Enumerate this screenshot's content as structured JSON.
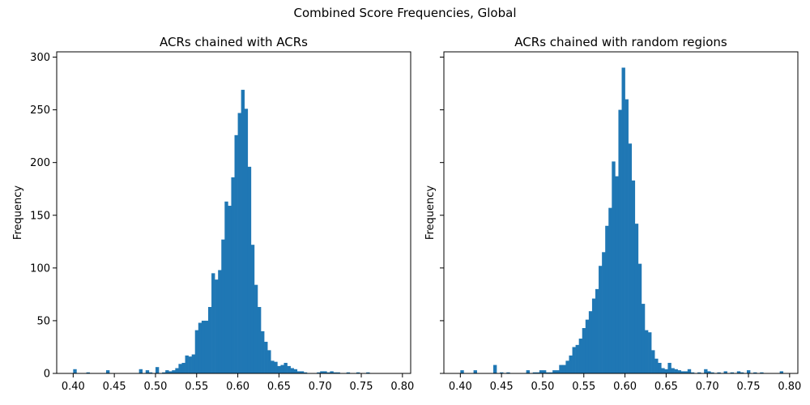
{
  "suptitle": "Combined Score Frequencies, Global",
  "chart_data": [
    {
      "type": "bar",
      "subtype": "histogram",
      "title": "ACRs chained with ACRs",
      "xlabel": "",
      "ylabel": "Frequency",
      "xlim": [
        0.38,
        0.81
      ],
      "ylim": [
        0,
        305
      ],
      "xticks": [
        0.4,
        0.45,
        0.5,
        0.55,
        0.6,
        0.65,
        0.7,
        0.75,
        0.8
      ],
      "xtick_labels": [
        "0.40",
        "0.45",
        "0.50",
        "0.55",
        "0.60",
        "0.65",
        "0.70",
        "0.75",
        "0.80"
      ],
      "yticks": [
        0,
        50,
        100,
        150,
        200,
        250,
        300
      ],
      "ytick_labels": [
        "0",
        "50",
        "100",
        "150",
        "200",
        "250",
        "300"
      ],
      "color": "#1f77b4",
      "bin_width": 0.004,
      "bins": [
        [
          0.4,
          4
        ],
        [
          0.416,
          1
        ],
        [
          0.44,
          3
        ],
        [
          0.48,
          4
        ],
        [
          0.488,
          3
        ],
        [
          0.492,
          1
        ],
        [
          0.5,
          6
        ],
        [
          0.508,
          1
        ],
        [
          0.512,
          3
        ],
        [
          0.516,
          2
        ],
        [
          0.52,
          3
        ],
        [
          0.524,
          5
        ],
        [
          0.528,
          9
        ],
        [
          0.532,
          10
        ],
        [
          0.536,
          17
        ],
        [
          0.54,
          16
        ],
        [
          0.544,
          18
        ],
        [
          0.548,
          41
        ],
        [
          0.552,
          48
        ],
        [
          0.556,
          50
        ],
        [
          0.56,
          50
        ],
        [
          0.564,
          63
        ],
        [
          0.568,
          95
        ],
        [
          0.572,
          89
        ],
        [
          0.576,
          98
        ],
        [
          0.58,
          127
        ],
        [
          0.584,
          163
        ],
        [
          0.588,
          159
        ],
        [
          0.592,
          186
        ],
        [
          0.596,
          226
        ],
        [
          0.6,
          247
        ],
        [
          0.604,
          269
        ],
        [
          0.608,
          251
        ],
        [
          0.612,
          196
        ],
        [
          0.616,
          122
        ],
        [
          0.62,
          84
        ],
        [
          0.624,
          63
        ],
        [
          0.628,
          40
        ],
        [
          0.632,
          30
        ],
        [
          0.636,
          22
        ],
        [
          0.64,
          12
        ],
        [
          0.644,
          11
        ],
        [
          0.648,
          7
        ],
        [
          0.652,
          8
        ],
        [
          0.656,
          10
        ],
        [
          0.66,
          7
        ],
        [
          0.664,
          5
        ],
        [
          0.668,
          4
        ],
        [
          0.672,
          2
        ],
        [
          0.676,
          2
        ],
        [
          0.68,
          1
        ],
        [
          0.696,
          1
        ],
        [
          0.7,
          2
        ],
        [
          0.704,
          2
        ],
        [
          0.708,
          1
        ],
        [
          0.712,
          2
        ],
        [
          0.716,
          1
        ],
        [
          0.72,
          1
        ],
        [
          0.732,
          1
        ],
        [
          0.744,
          1
        ],
        [
          0.756,
          1
        ]
      ]
    },
    {
      "type": "bar",
      "subtype": "histogram",
      "title": "ACRs chained with random regions",
      "xlabel": "",
      "ylabel": "Frequency",
      "xlim": [
        0.38,
        0.81
      ],
      "ylim": [
        0,
        305
      ],
      "xticks": [
        0.4,
        0.45,
        0.5,
        0.55,
        0.6,
        0.65,
        0.7,
        0.75,
        0.8
      ],
      "xtick_labels": [
        "0.40",
        "0.45",
        "0.50",
        "0.55",
        "0.60",
        "0.65",
        "0.70",
        "0.75",
        "0.80"
      ],
      "yticks": [
        0,
        50,
        100,
        150,
        200,
        250,
        300
      ],
      "ytick_labels": [],
      "color": "#1f77b4",
      "bin_width": 0.004,
      "bins": [
        [
          0.4,
          3
        ],
        [
          0.416,
          3
        ],
        [
          0.44,
          8
        ],
        [
          0.448,
          1
        ],
        [
          0.456,
          1
        ],
        [
          0.48,
          3
        ],
        [
          0.488,
          1
        ],
        [
          0.492,
          1
        ],
        [
          0.496,
          3
        ],
        [
          0.5,
          3
        ],
        [
          0.504,
          1
        ],
        [
          0.508,
          1
        ],
        [
          0.512,
          3
        ],
        [
          0.516,
          3
        ],
        [
          0.52,
          8
        ],
        [
          0.524,
          8
        ],
        [
          0.528,
          12
        ],
        [
          0.532,
          17
        ],
        [
          0.536,
          25
        ],
        [
          0.54,
          27
        ],
        [
          0.544,
          33
        ],
        [
          0.548,
          43
        ],
        [
          0.552,
          51
        ],
        [
          0.556,
          59
        ],
        [
          0.56,
          71
        ],
        [
          0.564,
          80
        ],
        [
          0.568,
          102
        ],
        [
          0.572,
          115
        ],
        [
          0.576,
          140
        ],
        [
          0.58,
          157
        ],
        [
          0.584,
          201
        ],
        [
          0.588,
          187
        ],
        [
          0.592,
          250
        ],
        [
          0.596,
          290
        ],
        [
          0.6,
          260
        ],
        [
          0.604,
          218
        ],
        [
          0.608,
          183
        ],
        [
          0.612,
          142
        ],
        [
          0.616,
          104
        ],
        [
          0.62,
          66
        ],
        [
          0.624,
          41
        ],
        [
          0.628,
          39
        ],
        [
          0.632,
          22
        ],
        [
          0.636,
          14
        ],
        [
          0.64,
          10
        ],
        [
          0.644,
          5
        ],
        [
          0.648,
          4
        ],
        [
          0.652,
          10
        ],
        [
          0.656,
          5
        ],
        [
          0.66,
          4
        ],
        [
          0.664,
          3
        ],
        [
          0.668,
          2
        ],
        [
          0.672,
          2
        ],
        [
          0.676,
          4
        ],
        [
          0.68,
          1
        ],
        [
          0.688,
          1
        ],
        [
          0.696,
          4
        ],
        [
          0.7,
          2
        ],
        [
          0.704,
          1
        ],
        [
          0.712,
          1
        ],
        [
          0.72,
          2
        ],
        [
          0.728,
          1
        ],
        [
          0.736,
          2
        ],
        [
          0.74,
          1
        ],
        [
          0.748,
          3
        ],
        [
          0.756,
          1
        ],
        [
          0.764,
          1
        ],
        [
          0.788,
          2
        ]
      ]
    }
  ]
}
